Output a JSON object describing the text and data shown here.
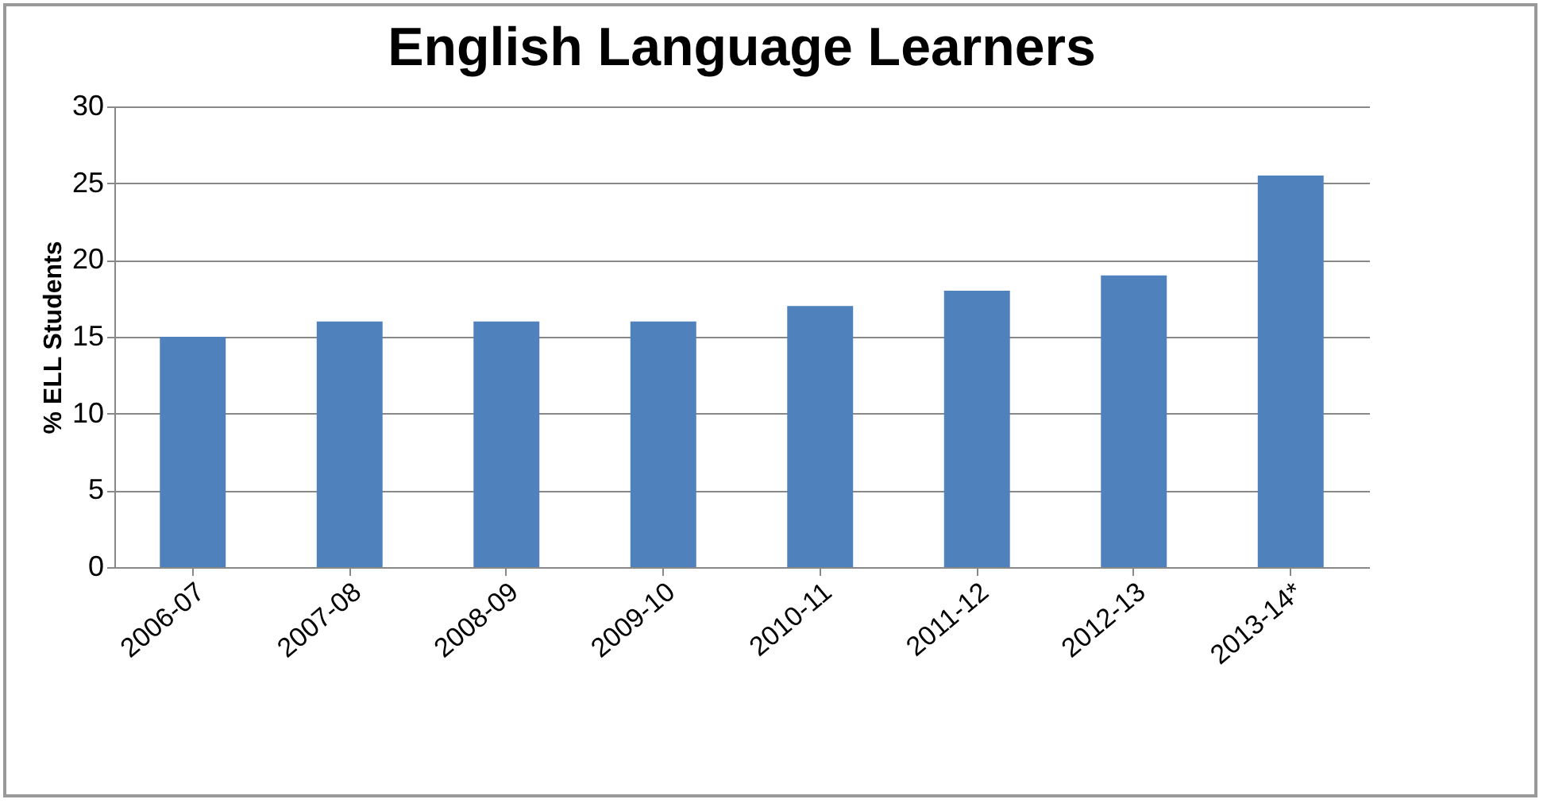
{
  "chart_data": {
    "type": "bar",
    "title": "English Language Learners",
    "ylabel": "% ELL Students",
    "categories": [
      "2006-07",
      "2007-08",
      "2008-09",
      "2009-10",
      "2010-11",
      "2011-12",
      "2012-13",
      "2013-14*"
    ],
    "values": [
      15,
      16,
      16,
      16,
      17,
      18,
      19,
      25.5
    ],
    "color": "#4f81bd",
    "ylim": [
      0,
      30
    ],
    "yticks": [
      0,
      5,
      10,
      15,
      20,
      25,
      30
    ],
    "grid": "y"
  }
}
